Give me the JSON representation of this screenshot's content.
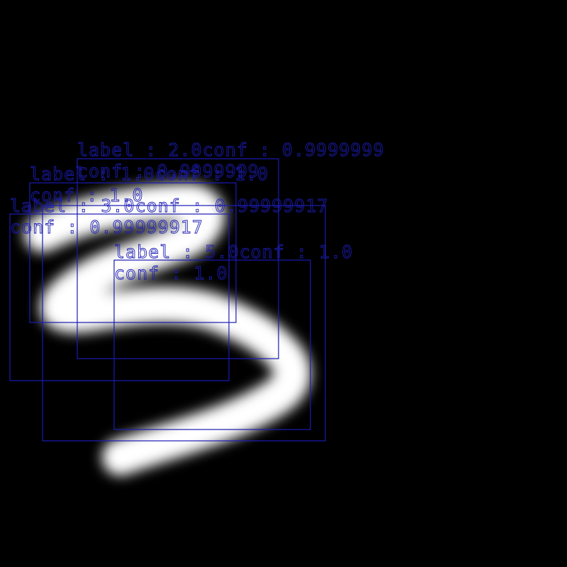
{
  "image": {
    "subject": "handwritten digit 3",
    "background_color": "#000000",
    "stroke_color": "#ffffff",
    "overlay_color": "#1c1cb4"
  },
  "detections": [
    {
      "label_text": "label : 2.0conf : 0.9999999",
      "conf_text": "conf : 0.9999999"
    },
    {
      "label_text": "label : 1.0conf : 1.0",
      "conf_text": "conf : 1.0"
    },
    {
      "label_text": "label : 3.0conf : 0.99999917",
      "conf_text": "conf : 0.99999917"
    },
    {
      "label_text": "label : 5.0conf : 1.0",
      "conf_text": "conf : 1.0"
    }
  ]
}
